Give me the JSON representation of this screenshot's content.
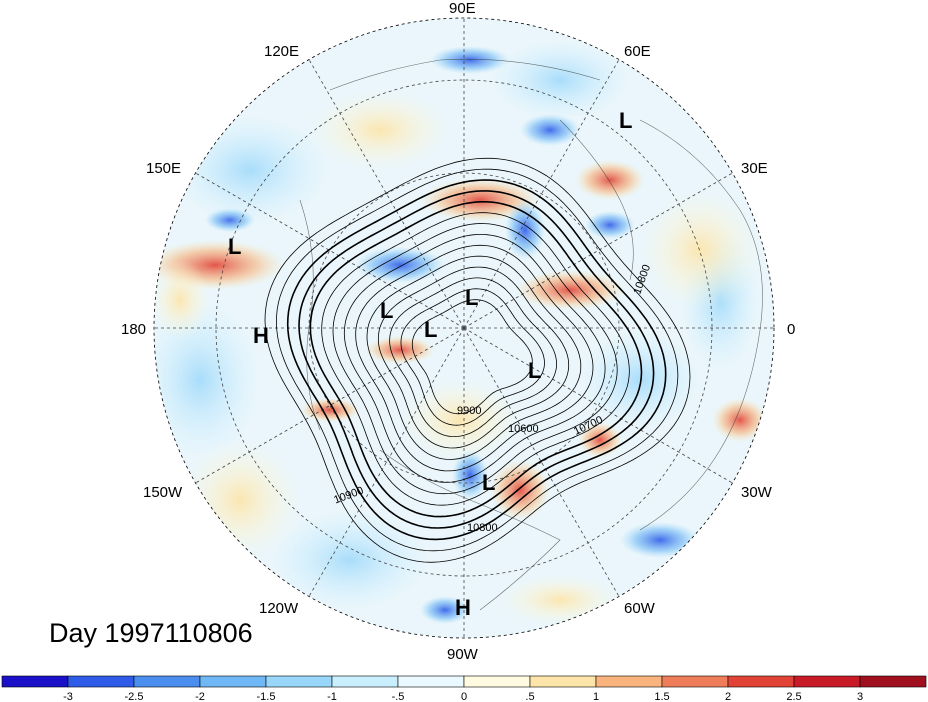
{
  "title": "Day 1997110806",
  "longitude_labels": [
    "90E",
    "60E",
    "30E",
    "0",
    "30W",
    "60W",
    "90W",
    "120W",
    "150W",
    "180",
    "150E",
    "120E"
  ],
  "contour_labels": [
    "10800",
    "10700",
    "9900",
    "10900",
    "10800",
    "10600"
  ],
  "pressure_centers": [
    {
      "type": "L"
    },
    {
      "type": "L"
    },
    {
      "type": "L"
    },
    {
      "type": "L"
    },
    {
      "type": "L"
    },
    {
      "type": "L"
    },
    {
      "type": "L"
    },
    {
      "type": "H"
    },
    {
      "type": "H"
    }
  ],
  "colorbar": {
    "tick_labels": [
      "-3",
      "-2.5",
      "-2",
      "-1.5",
      "-1",
      "-.5",
      "0",
      ".5",
      "1",
      "1.5",
      "2",
      "2.5",
      "3"
    ],
    "colors": [
      "#1a10c8",
      "#2e5be8",
      "#4a8ff0",
      "#6fb7f5",
      "#98d6fa",
      "#c9efff",
      "#e9f9ff",
      "#fffbe0",
      "#fde4a8",
      "#f8b47c",
      "#f07d5a",
      "#e14437",
      "#c81b27",
      "#a00f1e"
    ]
  },
  "colors": {
    "background": "#ffffff",
    "ocean_base": "#eaf6fb"
  }
}
